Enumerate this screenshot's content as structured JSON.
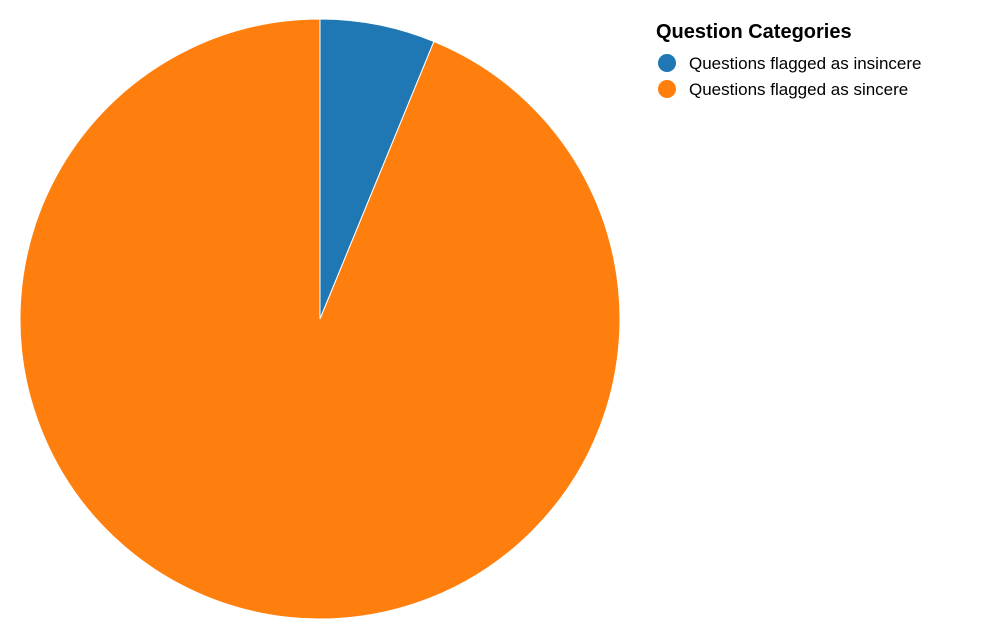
{
  "chart_data": {
    "type": "pie",
    "categories": [
      "Questions flagged as insincere",
      "Questions flagged as sincere"
    ],
    "values": [
      6.2,
      93.8
    ],
    "colors": [
      "#1f77b4",
      "#ff7f0e"
    ],
    "start_angle": "12 o'clock",
    "direction": "clockwise",
    "legend": {
      "title": "Question Categories",
      "placement": "top-right"
    }
  }
}
